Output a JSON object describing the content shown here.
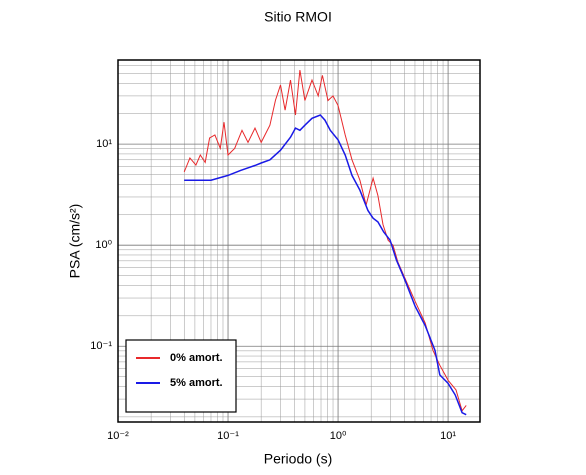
{
  "chart_data": {
    "type": "line",
    "title": "Sitio RMOI",
    "xlabel": "Periodo (s)",
    "ylabel": "PSA (cm/s²)",
    "xscale": "log",
    "yscale": "log",
    "grid": true,
    "legend": "lower left",
    "xlim": [
      0.01,
      19.5
    ],
    "ylim": [
      0.0178,
      68
    ],
    "xticks": [
      {
        "value": 0.01,
        "label": "10⁻²"
      },
      {
        "value": 0.1,
        "label": "10⁻¹"
      },
      {
        "value": 1,
        "label": "10⁰"
      },
      {
        "value": 10,
        "label": "10¹"
      }
    ],
    "yticks": [
      {
        "value": 0.1,
        "label": "10⁻¹"
      },
      {
        "value": 1,
        "label": "10⁰"
      },
      {
        "value": 10,
        "label": "10¹"
      }
    ],
    "xminorticks": [
      0.02,
      0.03,
      0.04,
      0.05,
      0.06,
      0.07,
      0.08,
      0.09,
      0.2,
      0.3,
      0.4,
      0.5,
      0.6,
      0.7,
      0.8,
      0.9,
      2,
      3,
      4,
      5,
      6,
      7,
      8,
      9
    ],
    "yminorticks": [
      0.02,
      0.03,
      0.04,
      0.05,
      0.06,
      0.07,
      0.08,
      0.09,
      0.2,
      0.3,
      0.4,
      0.5,
      0.6,
      0.7,
      0.8,
      0.9,
      2,
      3,
      4,
      5,
      6,
      7,
      8,
      9,
      20,
      30,
      40,
      50,
      60
    ],
    "series": [
      {
        "name": "0% amort.",
        "color": "#e8292b",
        "x": [
          0.04,
          0.045,
          0.051,
          0.056,
          0.062,
          0.068,
          0.076,
          0.085,
          0.092,
          0.1,
          0.115,
          0.134,
          0.152,
          0.176,
          0.2,
          0.24,
          0.27,
          0.3,
          0.33,
          0.37,
          0.41,
          0.45,
          0.5,
          0.58,
          0.66,
          0.72,
          0.81,
          0.9,
          1.0,
          1.16,
          1.34,
          1.58,
          1.8,
          2.08,
          2.3,
          2.56,
          2.85,
          3.16,
          3.5,
          4.06,
          5,
          6.2,
          7.3,
          8.4,
          10,
          11.8,
          13.4,
          14.6
        ],
        "values": [
          5.3,
          7.3,
          6.2,
          7.8,
          6.6,
          11.5,
          12.3,
          9.1,
          16.5,
          7.8,
          9.1,
          13.7,
          10.4,
          14.4,
          10.4,
          15.4,
          27.3,
          38.5,
          21.7,
          43,
          19.4,
          54,
          27,
          43,
          30,
          48,
          27,
          30,
          24,
          12.3,
          7,
          4.4,
          2.5,
          4.6,
          3.1,
          1.6,
          1.12,
          1.0,
          0.68,
          0.47,
          0.28,
          0.17,
          0.091,
          0.065,
          0.046,
          0.037,
          0.023,
          0.026
        ]
      },
      {
        "name": "5% amort.",
        "color": "#1a1ae6",
        "x": [
          0.04,
          0.07,
          0.1,
          0.13,
          0.18,
          0.2,
          0.24,
          0.3,
          0.37,
          0.41,
          0.45,
          0.5,
          0.58,
          0.69,
          0.76,
          0.85,
          1.0,
          1.16,
          1.34,
          1.58,
          1.87,
          2.08,
          2.3,
          2.6,
          2.97,
          3.4,
          4.06,
          5,
          6.2,
          7.6,
          8.4,
          10,
          11.6,
          13.4,
          14.6
        ],
        "values": [
          4.4,
          4.4,
          4.9,
          5.5,
          6.2,
          6.5,
          7,
          8.7,
          11.7,
          14.4,
          13.7,
          15.4,
          18,
          19.4,
          17.3,
          13.7,
          11,
          7.8,
          4.9,
          3.5,
          2.2,
          1.85,
          1.7,
          1.35,
          1.12,
          0.71,
          0.45,
          0.25,
          0.16,
          0.091,
          0.052,
          0.043,
          0.033,
          0.022,
          0.021
        ]
      }
    ]
  }
}
